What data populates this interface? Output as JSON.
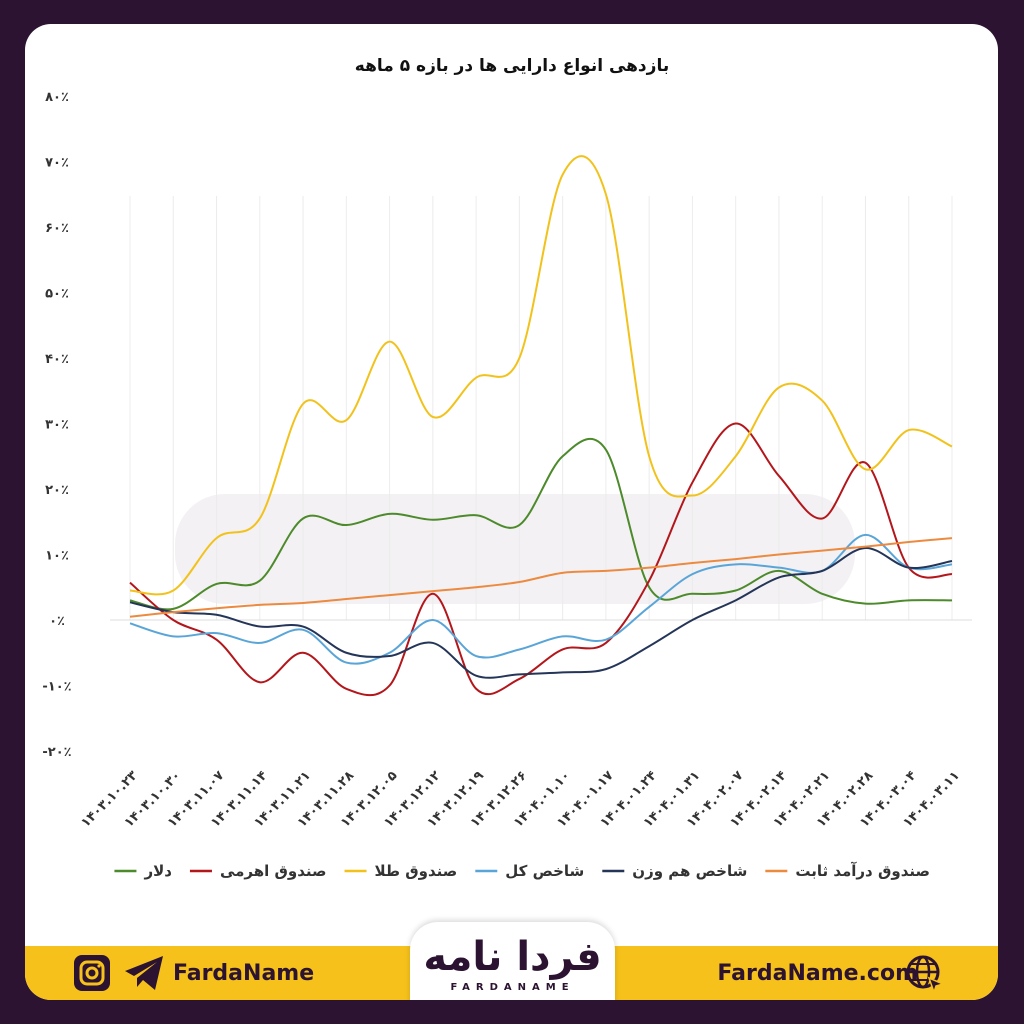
{
  "brand": {
    "left_text": "FardaName",
    "right_text": "FardaName.com",
    "logo_text": "فردا نامه",
    "logo_sub": "FARDANAME",
    "background": "#2b1331",
    "accent": "#f5c11a"
  },
  "icons": [
    "instagram-icon",
    "telegram-icon",
    "globe-cursor-icon"
  ],
  "chart_data": {
    "type": "line",
    "title": "بازدهی انواع دارایی ها در بازه ۵ ماهه",
    "ylim": [
      -20,
      80
    ],
    "yticks": [
      80,
      70,
      60,
      50,
      40,
      30,
      20,
      10,
      0,
      -10,
      -20
    ],
    "ytick_labels": [
      "۸۰٪",
      "۷۰٪",
      "۶۰٪",
      "۵۰٪",
      "۴۰٪",
      "۳۰٪",
      "۲۰٪",
      "۱۰٪",
      "۰٪",
      "-۱۰٪",
      "-۲۰٪"
    ],
    "categories": [
      "۱۴۰۳.۱۰.۲۳",
      "۱۴۰۳.۱۰.۳۰",
      "۱۴۰۳.۱۱.۰۷",
      "۱۴۰۳.۱۱.۱۴",
      "۱۴۰۳.۱۱.۲۱",
      "۱۴۰۳.۱۱.۲۸",
      "۱۴۰۳.۱۲.۰۵",
      "۱۴۰۳.۱۲.۱۲",
      "۱۴۰۳.۱۲.۱۹",
      "۱۴۰۳.۱۲.۲۶",
      "۱۴۰۴.۰۱.۱۰",
      "۱۴۰۴.۰۱.۱۷",
      "۱۴۰۴.۰۱.۲۴",
      "۱۴۰۴.۰۱.۳۱",
      "۱۴۰۴.۰۲.۰۷",
      "۱۴۰۴.۰۲.۱۴",
      "۱۴۰۴.۰۲.۲۱",
      "۱۴۰۴.۰۲.۲۸",
      "۱۴۰۴.۰۳.۰۴",
      "۱۴۰۴.۰۳.۱۱"
    ],
    "legend_position": "bottom",
    "grid": "vertical",
    "series": [
      {
        "name": "دلار",
        "color": "#4c8a2b",
        "values": [
          3,
          1.7,
          5.5,
          6,
          15.5,
          14.5,
          16.2,
          15.3,
          16,
          14.5,
          25,
          26,
          5,
          4,
          4.5,
          7.5,
          4,
          2.5,
          3,
          3
        ]
      },
      {
        "name": "صندوق اهرمی",
        "color": "#b3161b",
        "values": [
          5.7,
          0,
          -3,
          -9.5,
          -5,
          -10.5,
          -10,
          4,
          -10.5,
          -9,
          -4.5,
          -3.5,
          6,
          21,
          30,
          22,
          15.5,
          24,
          8,
          7
        ]
      },
      {
        "name": "صندوق طلا",
        "color": "#f2c21c",
        "values": [
          4.5,
          4.5,
          12.5,
          15.5,
          33,
          30.5,
          42.5,
          31,
          37,
          40,
          68,
          65,
          25,
          19,
          25,
          35.5,
          33.5,
          23,
          29,
          26.5
        ]
      },
      {
        "name": "شاخص کل",
        "color": "#5aa5d8",
        "values": [
          -0.5,
          -2.5,
          -2,
          -3.5,
          -1.5,
          -6.5,
          -5,
          0,
          -5.5,
          -4.5,
          -2.5,
          -3,
          2,
          7,
          8.5,
          8,
          7.5,
          13,
          8,
          8.5
        ]
      },
      {
        "name": "شاخص هم وزن",
        "color": "#243558",
        "values": [
          2.7,
          1.2,
          0.8,
          -1,
          -1,
          -5,
          -5.5,
          -3.5,
          -8.5,
          -8.3,
          -8,
          -7.5,
          -4,
          0,
          3,
          6.5,
          7.5,
          11,
          8,
          9
        ]
      },
      {
        "name": "صندوق درآمد ثابت",
        "color": "#ec8a40",
        "values": [
          0.5,
          1.2,
          1.8,
          2.3,
          2.6,
          3.2,
          3.8,
          4.4,
          5,
          5.8,
          7.2,
          7.5,
          8,
          8.7,
          9.3,
          10,
          10.6,
          11.2,
          11.9,
          12.5
        ]
      }
    ]
  }
}
